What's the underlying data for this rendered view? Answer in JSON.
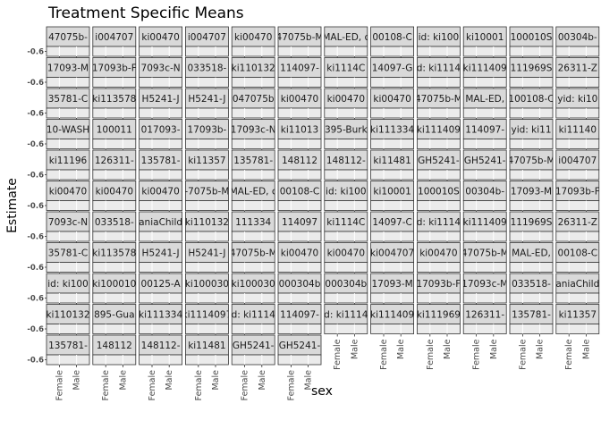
{
  "chart_data": {
    "type": "scatter",
    "title": "Treatment Specific Means",
    "xlabel": "sex",
    "ylabel": "Estimate",
    "x_categories": [
      "Female",
      "Male"
    ],
    "y_tick_label": "-0.6",
    "facet_layout": "wrap",
    "panels": [
      "47075b-",
      "i004707",
      "ki00470",
      "i004707",
      "ki00470",
      "47075b-M",
      "MAL-ED, c",
      "00108-C",
      "id: ki100",
      "ki10001",
      "100010S",
      "00304b-",
      "17093-M",
      "17093b-F",
      "7093c-N",
      "033518-",
      "ki110132",
      "114097-",
      "ki1114C",
      "14097-G",
      "d: ki1114",
      "ki111409",
      "111969S",
      "26311-Z",
      "35781-C",
      "ki113578",
      "H5241-J",
      "H5241-J",
      "047075b",
      "ki00470",
      "ki00470",
      "ki00470",
      "47075b-M",
      "MAL-ED,",
      "100108-C",
      "yid: ki10",
      "10-WASH",
      "100011",
      "017093-",
      "17093b-",
      "17093c-N",
      "ki11013",
      "395-Burk",
      "ki111334",
      "ki111409",
      "114097-",
      "yid: ki11",
      "ki11140",
      "ki11196",
      "126311-",
      "135781-",
      "ki11357",
      "135781-",
      "148112",
      "148112-",
      "ki11481",
      "GH5241-",
      "GH5241-",
      "47075b-M",
      "i004707",
      "ki00470",
      "ki00470",
      "ki00470",
      "-7075b-M",
      "MAL-ED, c",
      "00108-C",
      "id: ki100",
      "ki10001",
      "100010S",
      "00304b-",
      "17093-M",
      "17093b-F",
      "7093c-N",
      "033518-",
      "aniaChild",
      "ki110132",
      "111334",
      "114097",
      "ki1114C",
      "14097-C",
      "d: ki1114",
      "ki111409",
      "111969S",
      "26311-Z",
      "35781-C",
      "ki113578",
      "H5241-J",
      "H5241-J",
      "47075b-M",
      "ki00470",
      "ki00470",
      "ki004707",
      "ki00470",
      "47075b-M",
      "MAL-ED,",
      "00108-C",
      "id: ki100",
      "ki100010",
      "00125-A",
      "ki100030",
      "ki100030",
      "000304b",
      "000304b",
      "17093-M",
      "17093b-F",
      "17093c-M",
      "033518-",
      "aniaChild",
      "ki110132",
      "895-Gua",
      "ki111334",
      "ki1114097",
      "d: ki1114",
      "114097-",
      "d: ki1114",
      "ki111409",
      "ki111969",
      "126311-",
      "135781-",
      "ki11357",
      "135781-",
      "148112",
      "148112-",
      "ki11481",
      "GH5241-",
      "GH5241-"
    ]
  }
}
